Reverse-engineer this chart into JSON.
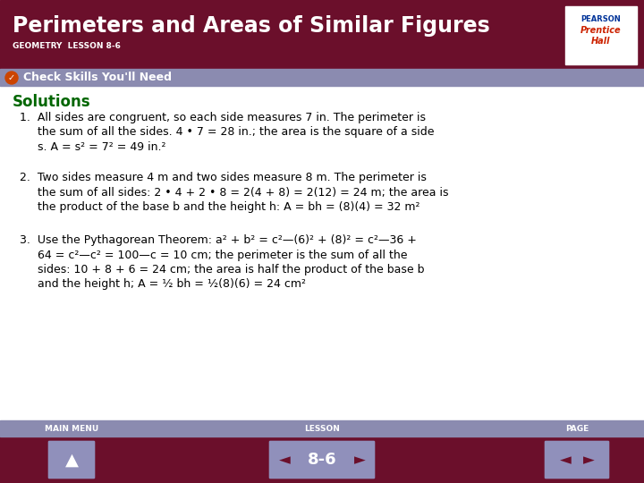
{
  "title": "Perimeters and Areas of Similar Figures",
  "subtitle": "GEOMETRY  LESSON 8-6",
  "header_bg": "#6B0F2B",
  "header_text_color": "#FFFFFF",
  "subheader_bg": "#8B8BB0",
  "subheader_text": "Check Skills You'll Need",
  "subheader_text_color": "#FFFFFF",
  "body_bg": "#FFFFFF",
  "solutions_color": "#006600",
  "body_text_color": "#000000",
  "footer_bg": "#6B0F2B",
  "footer_nav_color": "#8B8BB0",
  "footer_text_color": "#FFFFFF",
  "page_label": "8-6",
  "solutions_title": "Solutions",
  "item1_lines": [
    "1.  All sides are congruent, so each side measures 7 in. The perimeter is",
    "     the sum of all the sides. 4 • 7 = 28 in.; the area is the square of a side",
    "     s. A = s² = 7² = 49 in.²"
  ],
  "item2_lines": [
    "2.  Two sides measure 4 m and two sides measure 8 m. The perimeter is",
    "     the sum of all sides: 2 • 4 + 2 • 8 = 2(4 + 8) = 2(12) = 24 m; the area is",
    "     the product of the base b and the height h: A = bh = (8)(4) = 32 m²"
  ],
  "item3_lines": [
    "3.  Use the Pythagorean Theorem: a² + b² = c²—(6)² + (8)² = c²—36 +",
    "     64 = c²—c² = 100—c = 10 cm; the perimeter is the sum of all the",
    "     sides: 10 + 8 + 6 = 24 cm; the area is half the product of the base b",
    "     and the height h; A = ½ bh = ½(8)(6) = 24 cm²"
  ],
  "pearson_line1": "PEARSON",
  "pearson_line2": "Prentice",
  "pearson_line3": "Hall"
}
